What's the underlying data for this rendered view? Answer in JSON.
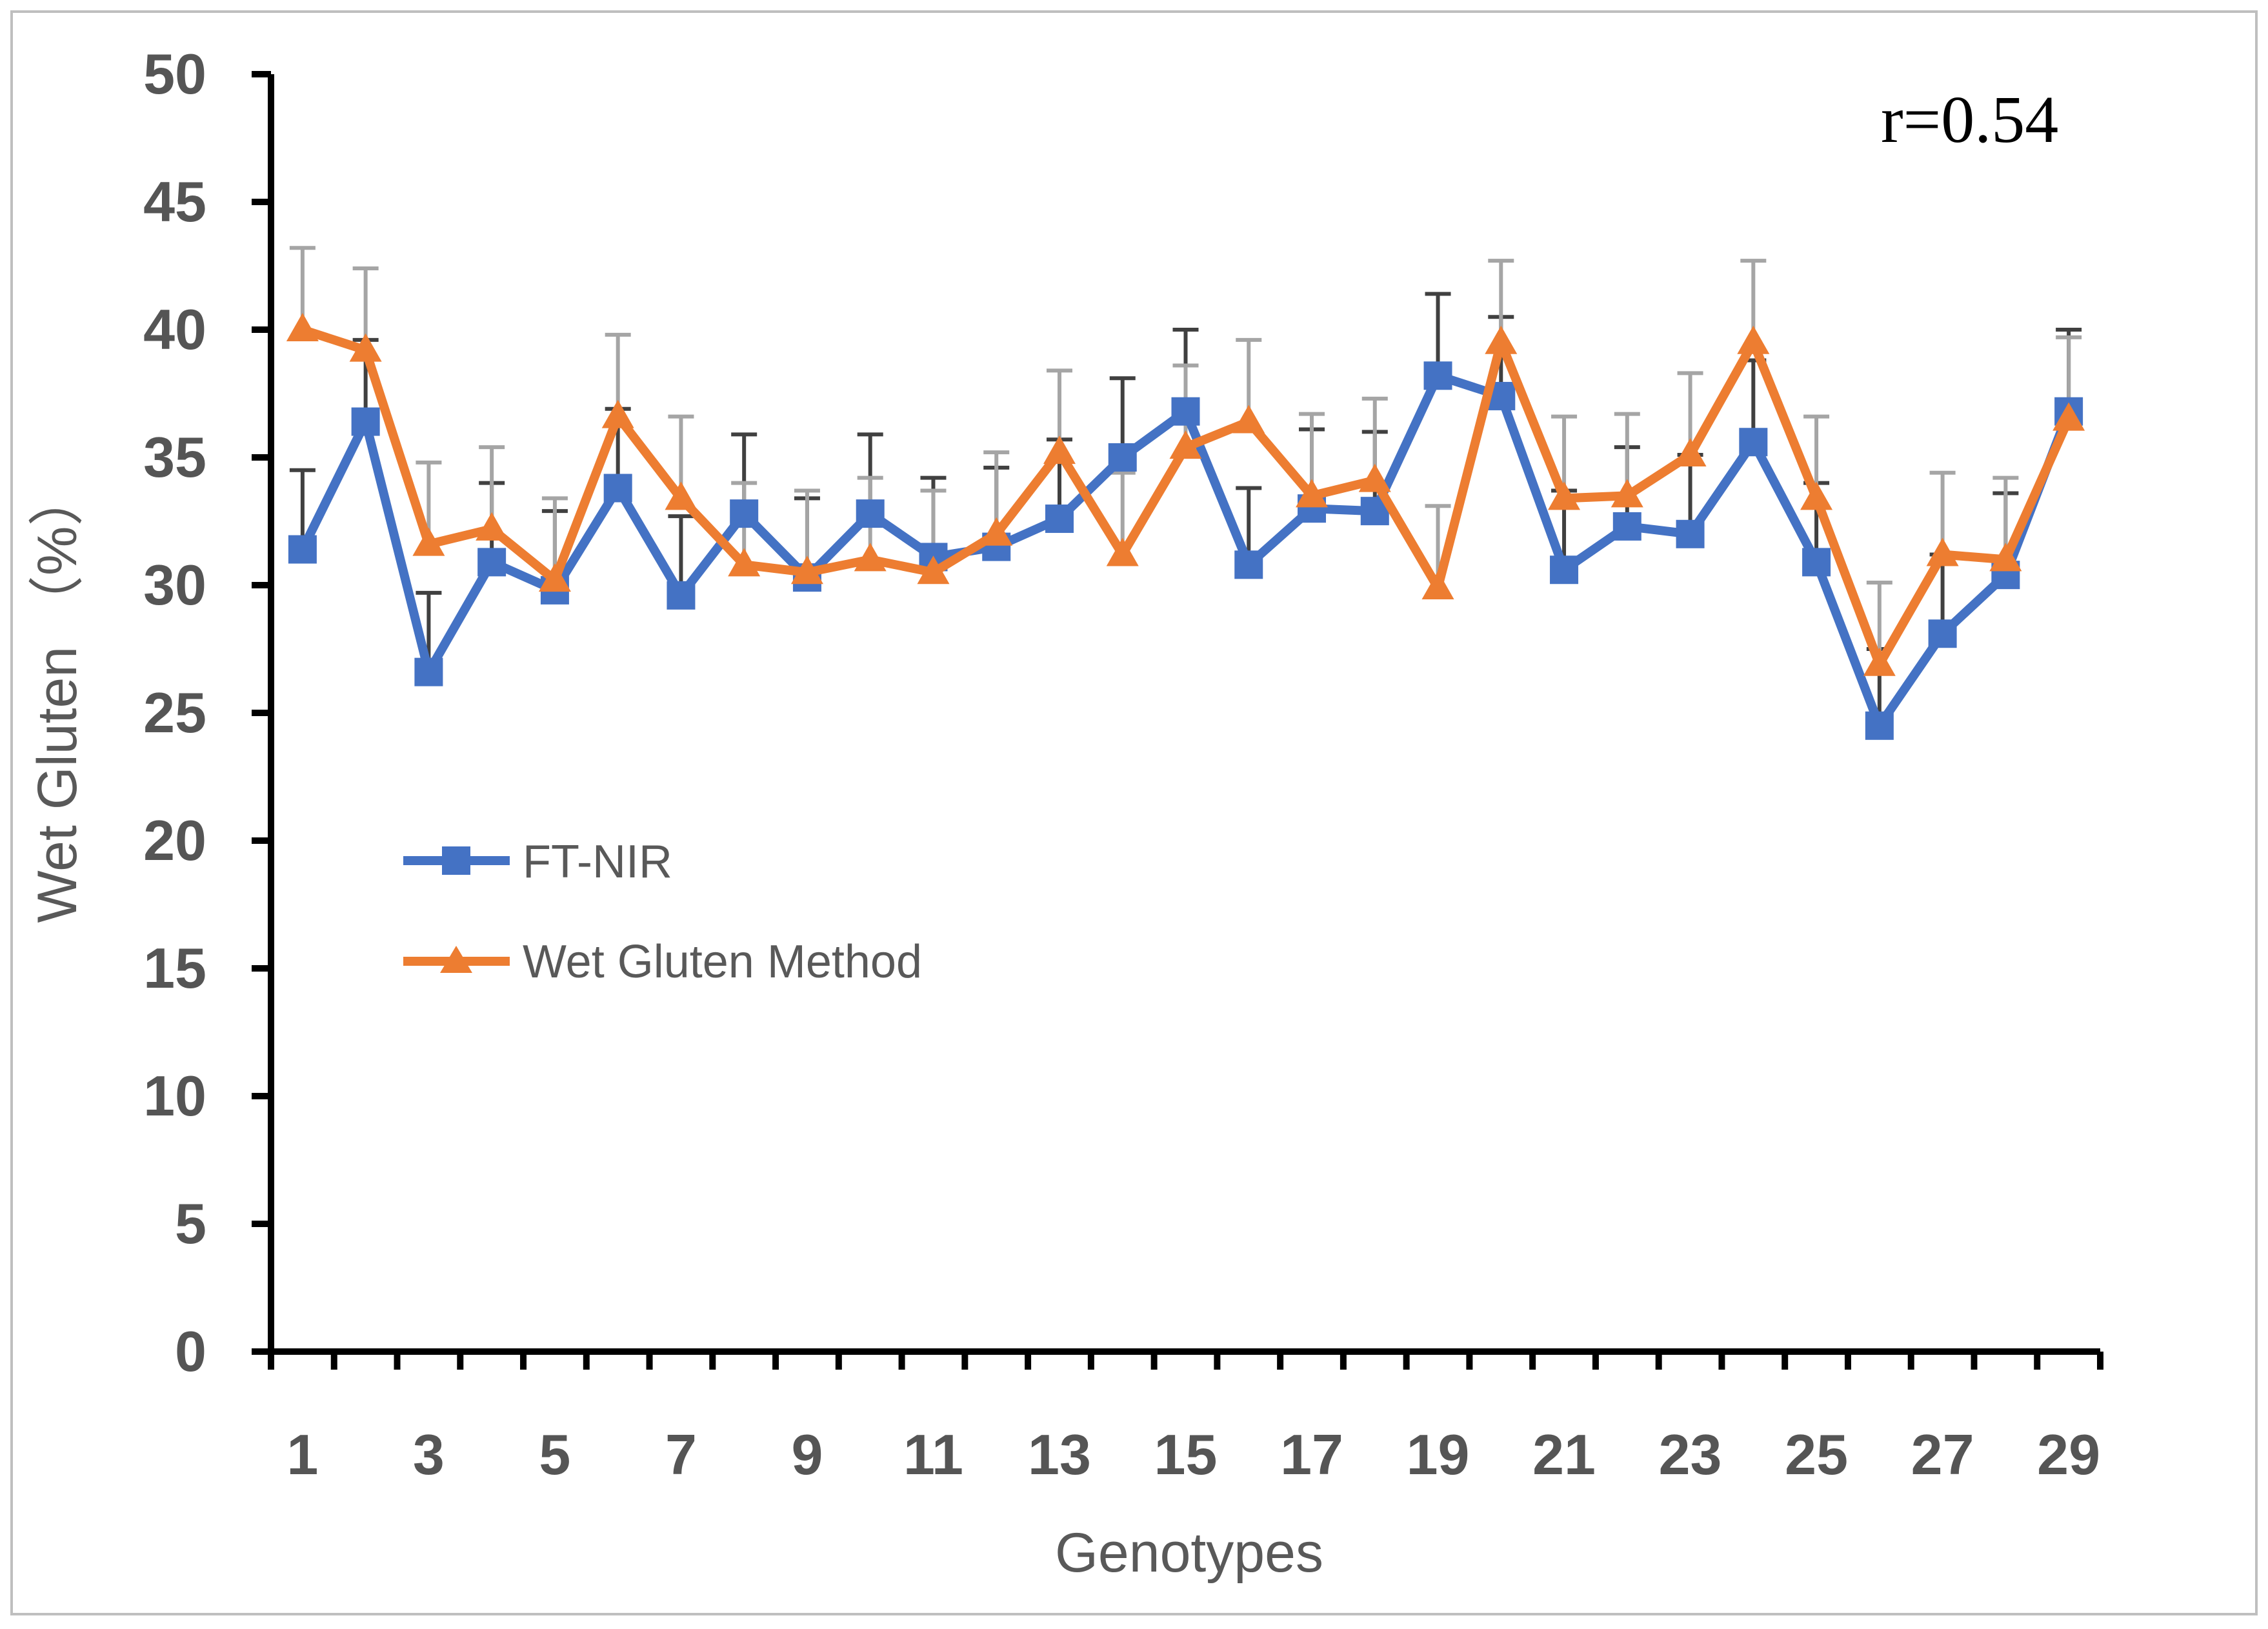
{
  "chart_data": {
    "type": "line",
    "title": "",
    "xlabel": "Genotypes",
    "ylabel": "Wet Gluten （%）",
    "ylim": [
      0,
      50
    ],
    "yticks": [
      0,
      5,
      10,
      15,
      20,
      25,
      30,
      35,
      40,
      45,
      50
    ],
    "categories": [
      1,
      2,
      3,
      4,
      5,
      6,
      7,
      8,
      9,
      10,
      11,
      12,
      13,
      14,
      15,
      16,
      17,
      18,
      19,
      20,
      21,
      22,
      23,
      24,
      25,
      26,
      27,
      28,
      29
    ],
    "x_tick_labels": [
      "1",
      "3",
      "5",
      "7",
      "9",
      "11",
      "13",
      "15",
      "17",
      "19",
      "21",
      "23",
      "25",
      "27",
      "29"
    ],
    "series": [
      {
        "name": "FT-NIR",
        "color": "#4472C4",
        "marker": "square",
        "values": [
          31.4,
          36.4,
          26.6,
          30.9,
          29.8,
          33.8,
          29.6,
          32.8,
          30.3,
          32.8,
          31.1,
          31.5,
          32.6,
          35.0,
          36.8,
          30.8,
          33.0,
          32.9,
          38.2,
          37.4,
          30.6,
          32.3,
          32.0,
          35.6,
          30.9,
          24.5,
          28.1,
          30.4,
          36.8
        ],
        "error": [
          3.1,
          3.2,
          3.1,
          3.1,
          3.1,
          3.1,
          3.1,
          3.1,
          3.1,
          3.1,
          3.1,
          3.1,
          3.1,
          3.1,
          3.2,
          3.0,
          3.1,
          3.1,
          3.2,
          3.1,
          3.1,
          3.1,
          3.1,
          3.2,
          3.1,
          3.0,
          3.1,
          3.2,
          3.2
        ],
        "error_color": "#404040"
      },
      {
        "name": "Wet Gluten Method",
        "color": "#ED7D31",
        "marker": "triangle",
        "values": [
          40.0,
          39.2,
          31.6,
          32.2,
          30.2,
          36.6,
          33.4,
          30.8,
          30.5,
          31.0,
          30.5,
          32.0,
          35.2,
          31.2,
          35.4,
          36.4,
          33.5,
          34.1,
          29.9,
          39.5,
          33.4,
          33.5,
          35.1,
          39.5,
          33.4,
          26.9,
          31.2,
          31.0,
          36.5
        ],
        "error": [
          3.2,
          3.2,
          3.2,
          3.2,
          3.2,
          3.2,
          3.2,
          3.2,
          3.2,
          3.2,
          3.2,
          3.2,
          3.2,
          3.2,
          3.2,
          3.2,
          3.2,
          3.2,
          3.2,
          3.2,
          3.2,
          3.2,
          3.2,
          3.2,
          3.2,
          3.2,
          3.2,
          3.2,
          3.2
        ],
        "error_color": "#A5A5A5"
      }
    ],
    "legend": {
      "position": "center-left",
      "entries": [
        "FT-NIR",
        "Wet Gluten Method"
      ]
    },
    "annotation": "r=0.54",
    "grid": false
  }
}
